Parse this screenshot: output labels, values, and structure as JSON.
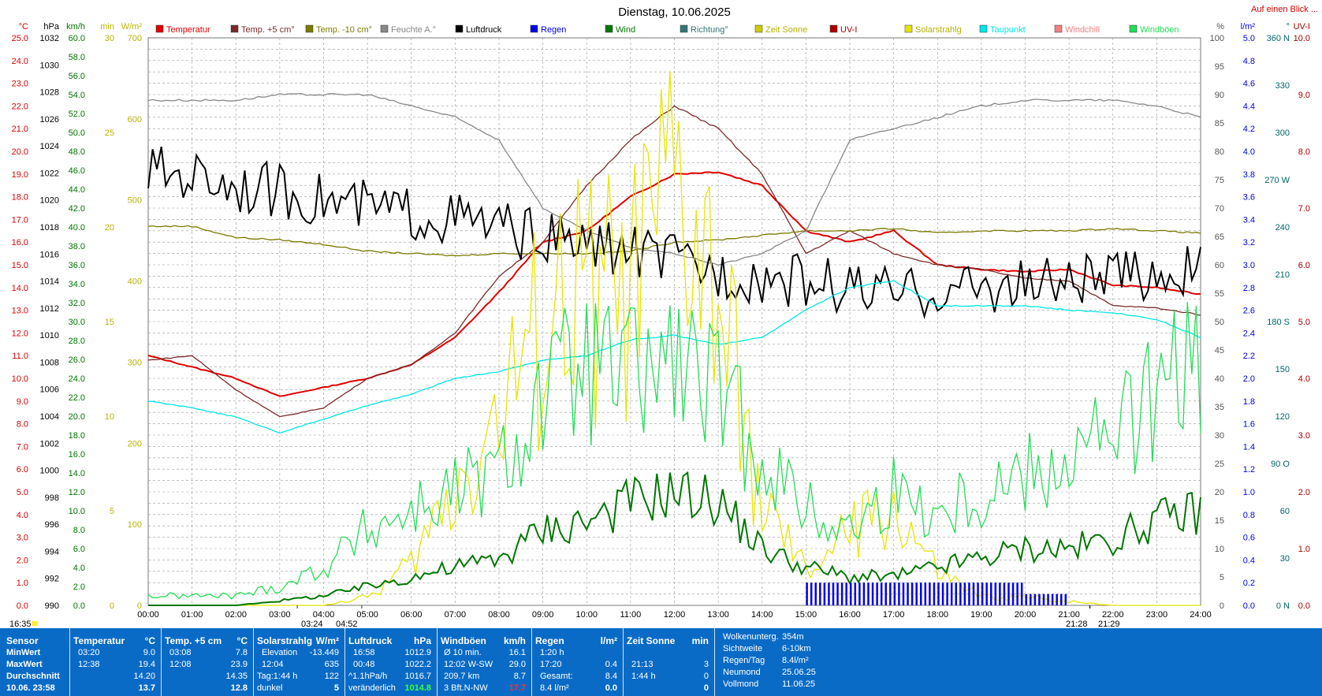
{
  "header": {
    "title": "Dienstag, 10.06.2025",
    "link": "Auf einen Blick ..."
  },
  "colors": {
    "panel_bg": "#0a6bc6"
  },
  "left_axes": [
    {
      "unit": "°C",
      "color": "#e00000",
      "min": 0,
      "max": 25,
      "step": 1,
      "decimals": 1
    },
    {
      "unit": "hPa",
      "color": "#000000",
      "min": 990,
      "max": 1032,
      "step": 2,
      "decimals": 0
    },
    {
      "unit": "km/h",
      "color": "#007700",
      "min": 0,
      "max": 60,
      "step": 2,
      "decimals": 1
    },
    {
      "unit": "min",
      "color": "#b9b300",
      "min": 0,
      "max": 30,
      "step": 5,
      "decimals": 0
    },
    {
      "unit": "W/m²",
      "color": "#b9b300",
      "min": 0,
      "max": 700,
      "step": 100,
      "decimals": 0
    }
  ],
  "right_axes": [
    {
      "unit": "%",
      "color": "#555555",
      "min": 0,
      "max": 100,
      "step": 5,
      "decimals": 0
    },
    {
      "unit": "l/m²",
      "color": "#0000ee",
      "min": 0,
      "max": 5.0,
      "step": 0.2,
      "decimals": 1
    },
    {
      "unit": "°",
      "color": "#006666",
      "labels": [
        "0 N",
        "30",
        "60",
        "90 O",
        "120",
        "150",
        "180 S",
        "210",
        "240",
        "270 W",
        "300",
        "330",
        "360 N"
      ]
    },
    {
      "unit": "UV-I",
      "color": "#aa0000",
      "min": 0,
      "max": 10,
      "step": 1,
      "decimals": 1
    }
  ],
  "x_labels": [
    "00:00",
    "01:00",
    "02:00",
    "03:00",
    "04:00",
    "05:00",
    "06:00",
    "07:00",
    "08:00",
    "09:00",
    "10:00",
    "11:00",
    "12:00",
    "13:00",
    "14:00",
    "15:00",
    "16:00",
    "17:00",
    "18:00",
    "19:00",
    "20:00",
    "21:00",
    "22:00",
    "23:00",
    "24:00"
  ],
  "time_markers": {
    "now": "16:35",
    "sunrise_a": "03:24",
    "sunrise_b": "04:52",
    "sunset_a": "21:28",
    "sunset_b": "21:29"
  },
  "legend": [
    {
      "label": "Temperatur",
      "color": "#e00000"
    },
    {
      "label": "Temp. +5 cm°",
      "color": "#7a2a2a"
    },
    {
      "label": "Temp. -10 cm°",
      "color": "#7a7a00"
    },
    {
      "label": "Feuchte A.°",
      "color": "#888888"
    },
    {
      "label": "Luftdruck",
      "color": "#000000"
    },
    {
      "label": "Regen",
      "color": "#0000ee"
    },
    {
      "label": "Wind",
      "color": "#007700"
    },
    {
      "label": "Richtung°",
      "color": "#337777"
    },
    {
      "label": "Zeit Sonne",
      "color": "#cccc00"
    },
    {
      "label": "UV-I",
      "color": "#aa0000"
    },
    {
      "label": "Solarstrahlg",
      "color": "#e6e600"
    },
    {
      "label": "Taupunkt",
      "color": "#00e5e5"
    },
    {
      "label": "Windchill",
      "color": "#f08080"
    },
    {
      "label": "Windböen",
      "color": "#22dd55"
    }
  ],
  "chart_data": {
    "type": "line",
    "title": "Dienstag, 10.06.2025",
    "x": [
      0,
      1,
      2,
      3,
      4,
      5,
      6,
      7,
      8,
      9,
      10,
      11,
      12,
      13,
      14,
      15,
      16,
      17,
      18,
      19,
      20,
      21,
      22,
      23,
      24
    ],
    "series": [
      {
        "name": "Temperatur",
        "axis": "°C",
        "color": "#e00000",
        "values": [
          11.0,
          10.5,
          10.0,
          9.2,
          9.6,
          10.0,
          10.6,
          11.8,
          13.8,
          16.0,
          16.5,
          18.0,
          19.0,
          19.1,
          18.5,
          16.5,
          16.0,
          16.5,
          15.0,
          14.8,
          14.7,
          14.8,
          14.1,
          14.0,
          13.7
        ]
      },
      {
        "name": "Temp. +5 cm°",
        "axis": "°C",
        "color": "#7a2a2a",
        "values": [
          10.8,
          11.0,
          9.5,
          8.3,
          8.7,
          10.0,
          10.6,
          12.0,
          14.5,
          16.0,
          18.5,
          20.5,
          22.0,
          21.0,
          19.0,
          15.5,
          16.5,
          15.5,
          15.0,
          14.8,
          14.4,
          14.3,
          13.2,
          13.1,
          12.8
        ]
      },
      {
        "name": "Temp. -10 cm°",
        "axis": "°C",
        "color": "#7a7a00",
        "values": [
          16.7,
          16.7,
          16.2,
          16.1,
          15.9,
          15.6,
          15.5,
          15.4,
          15.5,
          15.5,
          15.5,
          15.6,
          16.0,
          16.1,
          16.3,
          16.5,
          16.5,
          16.6,
          16.4,
          16.5,
          16.5,
          16.5,
          16.6,
          16.5,
          16.4
        ]
      },
      {
        "name": "Feuchte A.°",
        "axis": "%",
        "color": "#888888",
        "values": [
          89,
          89,
          89,
          90,
          90,
          90,
          88,
          86,
          82,
          70,
          66,
          63,
          62,
          60,
          62,
          66,
          82,
          84,
          86,
          88,
          89,
          89,
          89,
          88,
          86
        ]
      },
      {
        "name": "Luftdruck",
        "axis": "hPa",
        "color": "#000000",
        "values": [
          1022.1,
          1021.9,
          1021.2,
          1020.6,
          1020.0,
          1019.4,
          1019.0,
          1018.6,
          1018.0,
          1017.2,
          1016.6,
          1016.3,
          1015.5,
          1014.7,
          1014.3,
          1014.0,
          1013.5,
          1012.9,
          1013.3,
          1013.5,
          1013.7,
          1013.9,
          1014.2,
          1014.6,
          1014.8
        ]
      },
      {
        "name": "Taupunkt",
        "axis": "°C",
        "color": "#00e5e5",
        "values": [
          9.0,
          8.7,
          8.3,
          7.6,
          8.2,
          8.8,
          9.3,
          10.0,
          10.3,
          10.8,
          11.0,
          11.7,
          11.9,
          11.5,
          11.8,
          13.0,
          14.0,
          14.3,
          13.2,
          13.2,
          13.2,
          13.0,
          12.9,
          12.6,
          11.8
        ]
      },
      {
        "name": "Solarstrahlg",
        "axis": "W/m²",
        "color": "#e6e600",
        "values": [
          0,
          0,
          0,
          0,
          0,
          10,
          50,
          150,
          230,
          350,
          380,
          380,
          500,
          370,
          120,
          40,
          90,
          120,
          40,
          10,
          10,
          5,
          0,
          0,
          0
        ]
      },
      {
        "name": "Wind",
        "axis": "km/h",
        "color": "#007700",
        "values": [
          0,
          0,
          0,
          0.5,
          1,
          2,
          3,
          4,
          5,
          8,
          9,
          11,
          12,
          11,
          6,
          4,
          3,
          3,
          4,
          5,
          6,
          6,
          7,
          9,
          10
        ]
      },
      {
        "name": "Windböen",
        "axis": "km/h",
        "color": "#22dd55",
        "values": [
          1,
          1,
          1,
          2,
          4,
          8,
          10,
          12,
          14,
          22,
          25,
          24,
          26,
          22,
          16,
          10,
          8,
          12,
          10,
          12,
          14,
          16,
          18,
          22,
          26
        ]
      },
      {
        "name": "Regen",
        "axis": "l/m²",
        "color": "#0000ee",
        "values": [
          0,
          0,
          0,
          0,
          0,
          0,
          0,
          0,
          0,
          0,
          0,
          0,
          0,
          0,
          0,
          0.2,
          0.2,
          0.2,
          0.2,
          0.2,
          0.1,
          0,
          0,
          0,
          0
        ]
      }
    ],
    "xlabel": "",
    "ylabel": "°C",
    "ylim": [
      0,
      25
    ],
    "grid": true
  },
  "stats": {
    "col1": {
      "head": "Sensor",
      "rows": [
        "MinWert",
        "MaxWert",
        "Durchschnitt",
        "10.06. 23:58"
      ]
    },
    "col2": {
      "head": "Temperatur",
      "unit": "°C",
      "rows": [
        [
          "03:20",
          "9.0"
        ],
        [
          "12:38",
          "19.4"
        ],
        [
          "",
          "14.20"
        ],
        [
          "",
          "13.7"
        ]
      ]
    },
    "col3": {
      "head": "Temp. +5 cm",
      "unit": "°C",
      "rows": [
        [
          "03:08",
          "7.8"
        ],
        [
          "12:08",
          "23.9"
        ],
        [
          "",
          "14.35"
        ],
        [
          "",
          "12.8"
        ]
      ]
    },
    "col4": {
      "head": "Solarstrahlg",
      "unit": "W/m²",
      "rows": [
        [
          "Elevation",
          "-13.449"
        ],
        [
          "12:04",
          "635"
        ],
        [
          "Tag:1:44 h",
          "122"
        ],
        [
          "dunkel",
          "5"
        ]
      ]
    },
    "col5": {
      "head": "Luftdruck",
      "unit": "hPa",
      "rows": [
        [
          "16:58",
          "1012.9"
        ],
        [
          "00:48",
          "1022.2"
        ],
        [
          "^1.1hPa/h",
          "1016.7"
        ],
        [
          "veränderlich",
          "1014.8"
        ]
      ]
    },
    "col6": {
      "head": "Windböen",
      "unit": "km/h",
      "rows": [
        [
          "Ø 10 min.",
          "16.1"
        ],
        [
          "12:02 W-SW",
          "29.0"
        ],
        [
          "209.7 km",
          "8.7"
        ],
        [
          "3 Bft.N-NW",
          "17.7"
        ]
      ]
    },
    "col7": {
      "head": "Regen",
      "unit": "l/m²",
      "rows": [
        [
          "1:20 h",
          ""
        ],
        [
          "17:20",
          "0.4"
        ],
        [
          "Gesamt:",
          "8.4"
        ],
        [
          "8.4 l/m²",
          "0.0"
        ]
      ]
    },
    "col8": {
      "head": "Zeit Sonne",
      "unit": "min",
      "rows": [
        [
          "",
          ""
        ],
        [
          "21:13",
          "3"
        ],
        [
          "1:44 h",
          "0"
        ],
        [
          "",
          "0"
        ]
      ]
    },
    "col9": {
      "rows": [
        [
          "Wolkenunterg.",
          "354m"
        ],
        [
          "Sichtweite",
          "6-10km"
        ],
        [
          "Regen/Tag",
          "8.4l/m²"
        ],
        [
          "Neumond",
          "25.06.25"
        ],
        [
          "Vollmond",
          "11.06.25"
        ]
      ]
    }
  }
}
